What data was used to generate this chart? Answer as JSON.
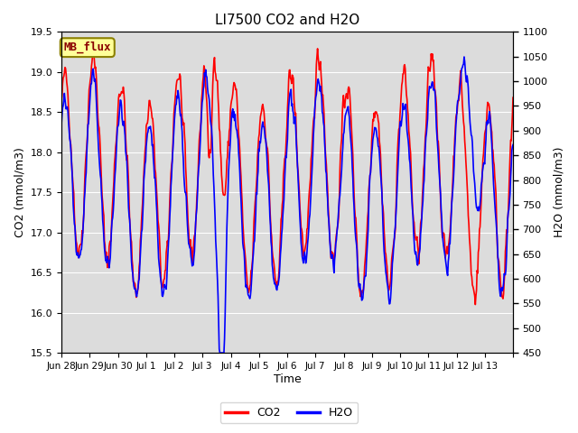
{
  "title": "LI7500 CO2 and H2O",
  "xlabel": "Time",
  "ylabel_left": "CO2 (mmol/m3)",
  "ylabel_right": "H2O (mmol/m3)",
  "co2_ylim": [
    15.5,
    19.5
  ],
  "h2o_ylim": [
    450,
    1100
  ],
  "co2_yticks": [
    15.5,
    16.0,
    16.5,
    17.0,
    17.5,
    18.0,
    18.5,
    19.0,
    19.5
  ],
  "h2o_yticks": [
    450,
    500,
    550,
    600,
    650,
    700,
    750,
    800,
    850,
    900,
    950,
    1000,
    1050,
    1100
  ],
  "xtick_positions": [
    0,
    1,
    2,
    3,
    4,
    5,
    6,
    7,
    8,
    9,
    10,
    11,
    12,
    13,
    14,
    15,
    16
  ],
  "xtick_labels": [
    "Jun 28",
    "Jun 29",
    "Jun 30",
    "Jul 1",
    "Jul 2",
    "Jul 3",
    "Jul 4",
    "Jul 5",
    "Jul 6",
    "Jul 7",
    "Jul 8",
    "Jul 9",
    "Jul 10",
    "Jul 11",
    "Jul 12",
    "Jul 13",
    ""
  ],
  "co2_color": "#FF0000",
  "h2o_color": "#0000FF",
  "plot_bg_color": "#DCDCDC",
  "watermark_text": "MB_flux",
  "watermark_bg": "#FFFF99",
  "watermark_border": "#8B8000",
  "linewidth": 1.2,
  "seed": 42
}
